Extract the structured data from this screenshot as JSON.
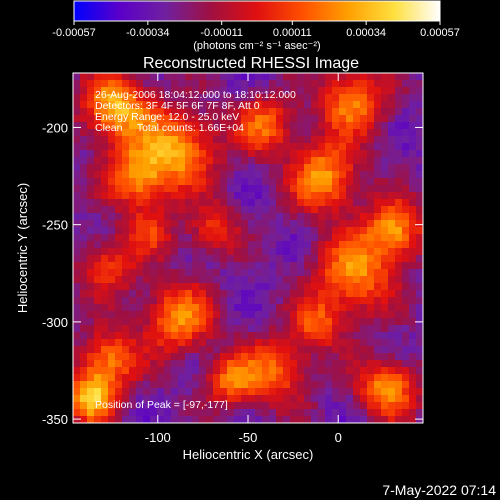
{
  "chart_data": {
    "type": "heatmap",
    "title": "Reconstructed RHESSI Image",
    "xlabel": "Heliocentric X (arcsec)",
    "ylabel": "Heliocentric Y (arcsec)",
    "xlim": [
      -147,
      47
    ],
    "ylim": [
      -352,
      -172
    ],
    "x_ticks": [
      -100,
      -50,
      0
    ],
    "y_ticks": [
      -200,
      -250,
      -300,
      -350
    ],
    "colorbar": {
      "min": -0.00057,
      "max": 0.00057,
      "ticks": [
        "-0.00057",
        "-0.00034",
        "-0.00011",
        "0.00011",
        "0.00034",
        "0.00057"
      ],
      "unit_label": "(photons cm⁻² s⁻¹ asec⁻²)"
    },
    "annotations": {
      "time_range": "26-Aug-2006 18:04:12.000 to 18:10:12.000",
      "detectors": "Detectors: 3F 4F 5F 6F 7F 8F, Att 0",
      "energy_range": "Energy Range: 12.0 - 25.0 keV",
      "clean": "Clean     Total counts: 1.66E+04",
      "peak": "Position of Peak = [-97,-177]"
    },
    "footer_date": "7-May-2022 07:14"
  },
  "colors": {
    "background": "#000000",
    "text": "#ffffff",
    "colormap": [
      "#0000ff",
      "#5a00c8",
      "#7020a0",
      "#a01040",
      "#e01010",
      "#ff5000",
      "#ffa000",
      "#ffe040",
      "#ffffff"
    ]
  }
}
